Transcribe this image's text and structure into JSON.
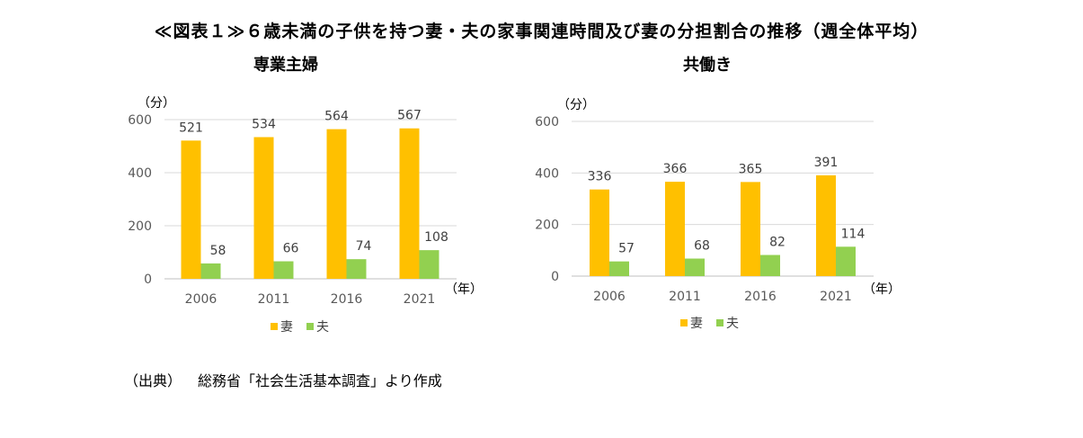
{
  "title": "≪図表１≫６歳未満の子供を持つ妻・夫の家事関連時間及び妻の分担割合の推移（週全体平均）",
  "source": {
    "label": "（出典）",
    "text": "総務省「社会生活基本調査」より作成"
  },
  "colors": {
    "wife": "#FFC000",
    "husband": "#92D050",
    "grid": "#D9D9D9",
    "axis": "#BFBFBF"
  },
  "chart_data": [
    {
      "type": "bar",
      "title": "専業主婦",
      "y_unit": "（分）",
      "x_unit": "（年）",
      "categories": [
        "2006",
        "2011",
        "2016",
        "2021"
      ],
      "series": [
        {
          "name": "妻",
          "values": [
            521,
            534,
            564,
            567
          ]
        },
        {
          "name": "夫",
          "values": [
            58,
            66,
            74,
            108
          ]
        }
      ],
      "yticks": [
        "0",
        "200",
        "400",
        "600"
      ],
      "ylim": [
        0,
        600
      ],
      "grid": true,
      "legend": "bottom"
    },
    {
      "type": "bar",
      "title": "共働き",
      "y_unit": "（分）",
      "x_unit": "（年）",
      "categories": [
        "2006",
        "2011",
        "2016",
        "2021"
      ],
      "series": [
        {
          "name": "妻",
          "values": [
            336,
            366,
            365,
            391
          ]
        },
        {
          "name": "夫",
          "values": [
            57,
            68,
            82,
            114
          ]
        }
      ],
      "yticks": [
        "0",
        "200",
        "400",
        "600"
      ],
      "ylim": [
        0,
        600
      ],
      "grid": true,
      "legend": "bottom"
    }
  ]
}
